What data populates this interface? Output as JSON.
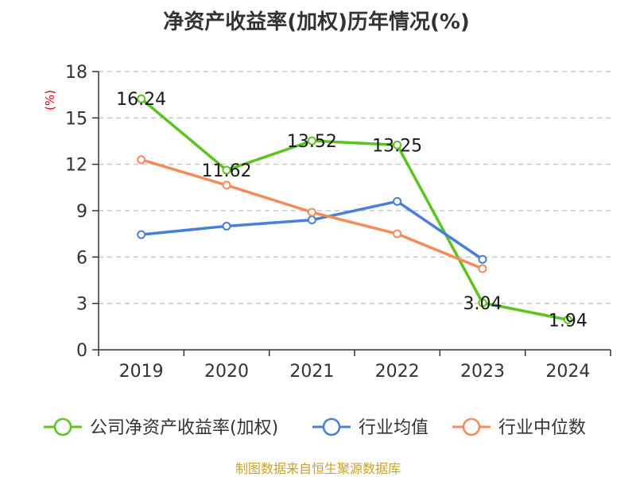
{
  "chart_data": {
    "type": "line",
    "title": "净资产收益率(加权)历年情况(%)",
    "ylabel": "(%)",
    "xlabel": "",
    "categories": [
      "2019",
      "2020",
      "2021",
      "2022",
      "2023",
      "2024"
    ],
    "ylim": [
      0,
      18
    ],
    "yticks": [
      0,
      3,
      6,
      9,
      12,
      15,
      18
    ],
    "grid": true,
    "legend_position": "bottom",
    "series": [
      {
        "name": "公司净资产收益率(加权)",
        "color": "#5cc41e",
        "values": [
          16.24,
          11.62,
          13.52,
          13.25,
          3.04,
          1.94
        ],
        "labels": [
          "16.24",
          "11.62",
          "13.52",
          "13.25",
          "3.04",
          "1.94"
        ]
      },
      {
        "name": "行业均值",
        "color": "#4a7fd8",
        "values": [
          7.45,
          8.0,
          8.4,
          9.6,
          5.85,
          null
        ]
      },
      {
        "name": "行业中位数",
        "color": "#f68b5a",
        "values": [
          12.3,
          10.65,
          8.9,
          7.5,
          5.25,
          null
        ]
      }
    ],
    "source": "制图数据来自恒生聚源数据库"
  }
}
